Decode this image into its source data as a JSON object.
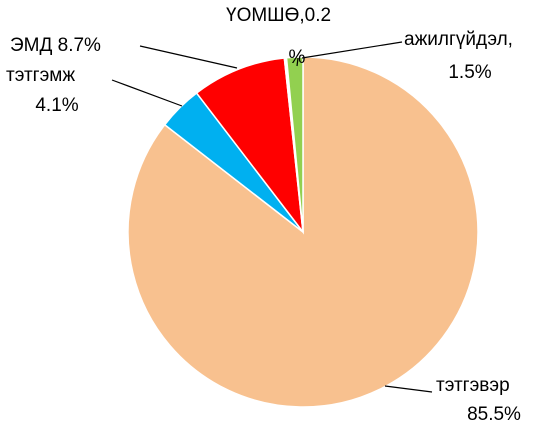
{
  "chart_data": {
    "type": "pie",
    "values": [
      85.5,
      4.1,
      8.7,
      0.2,
      1.5
    ],
    "value_labels": [
      [
        "тэтгэвэр",
        "85.5%"
      ],
      [
        "тэтгэмж",
        "4.1%"
      ],
      [
        "ЭМД 8.7%"
      ],
      [
        "ҮОМШӨ,0.2",
        "%"
      ],
      [
        "ажилгүйдэл,",
        "1.5%"
      ]
    ],
    "colors": [
      "#f8c18f",
      "#00b0f0",
      "#ff0000",
      "#ffffff",
      "#92d050"
    ]
  }
}
